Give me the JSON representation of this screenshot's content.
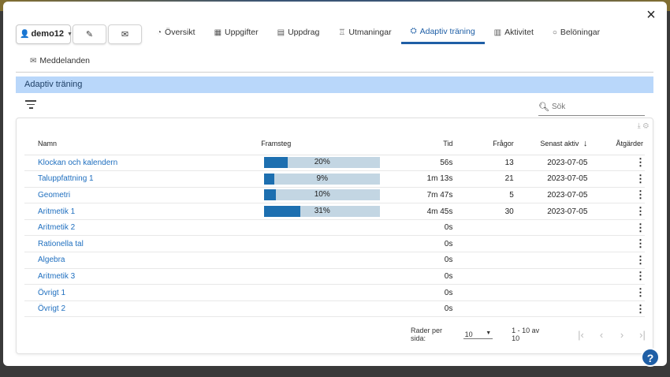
{
  "close_glyph": "×",
  "user": {
    "name": "demo12"
  },
  "tabs": [
    {
      "label": "Översikt",
      "icon": "gauge-icon",
      "glyph": "◔"
    },
    {
      "label": "Uppgifter",
      "icon": "grid-icon",
      "glyph": "▦"
    },
    {
      "label": "Uppdrag",
      "icon": "document-icon",
      "glyph": "▤"
    },
    {
      "label": "Utmaningar",
      "icon": "trophy-icon",
      "glyph": "♖"
    },
    {
      "label": "Adaptiv träning",
      "icon": "brain-icon",
      "glyph": "⛭"
    },
    {
      "label": "Aktivitet",
      "icon": "bar-chart-icon",
      "glyph": "▥"
    },
    {
      "label": "Belöningar",
      "icon": "circle-icon",
      "glyph": "○"
    }
  ],
  "active_tab": "Adaptiv träning",
  "messages_tab": {
    "label": "Meddelanden",
    "glyph": "✉"
  },
  "section_title": "Adaptiv träning",
  "search": {
    "placeholder": "Sök"
  },
  "columns": {
    "name": "Namn",
    "progress": "Framsteg",
    "time": "Tid",
    "questions": "Frågor",
    "last_active": "Senast aktiv",
    "actions": "Åtgärder"
  },
  "sort_glyph": "↓",
  "rows": [
    {
      "name": "Klockan och kalendern",
      "progress": 20,
      "progress_label": "20%",
      "time": "56s",
      "questions": "13",
      "last_active": "2023-07-05"
    },
    {
      "name": "Taluppfattning 1",
      "progress": 9,
      "progress_label": "9%",
      "time": "1m 13s",
      "questions": "21",
      "last_active": "2023-07-05"
    },
    {
      "name": "Geometri",
      "progress": 10,
      "progress_label": "10%",
      "time": "7m 47s",
      "questions": "5",
      "last_active": "2023-07-05"
    },
    {
      "name": "Aritmetik 1",
      "progress": 31,
      "progress_label": "31%",
      "time": "4m 45s",
      "questions": "30",
      "last_active": "2023-07-05"
    },
    {
      "name": "Aritmetik 2",
      "progress": null,
      "progress_label": "",
      "time": "0s",
      "questions": "",
      "last_active": ""
    },
    {
      "name": "Rationella tal",
      "progress": null,
      "progress_label": "",
      "time": "0s",
      "questions": "",
      "last_active": ""
    },
    {
      "name": "Algebra",
      "progress": null,
      "progress_label": "",
      "time": "0s",
      "questions": "",
      "last_active": ""
    },
    {
      "name": "Aritmetik 3",
      "progress": null,
      "progress_label": "",
      "time": "0s",
      "questions": "",
      "last_active": ""
    },
    {
      "name": "Övrigt 1",
      "progress": null,
      "progress_label": "",
      "time": "0s",
      "questions": "",
      "last_active": ""
    },
    {
      "name": "Övrigt 2",
      "progress": null,
      "progress_label": "",
      "time": "0s",
      "questions": "",
      "last_active": ""
    }
  ],
  "kebab_glyph": "⋮",
  "pagination": {
    "rows_per_page_label": "Rader per sida:",
    "rows_per_page": "10",
    "range": "1 - 10 av 10",
    "first": "|‹",
    "prev": "‹",
    "next": "›",
    "last": "›|"
  },
  "help_glyph": "?",
  "colors": {
    "accent": "#1f5fa6",
    "section_bar": "#b9d7fa",
    "progress_fill": "#1d6fb0",
    "progress_track": "#c3d6e3"
  }
}
